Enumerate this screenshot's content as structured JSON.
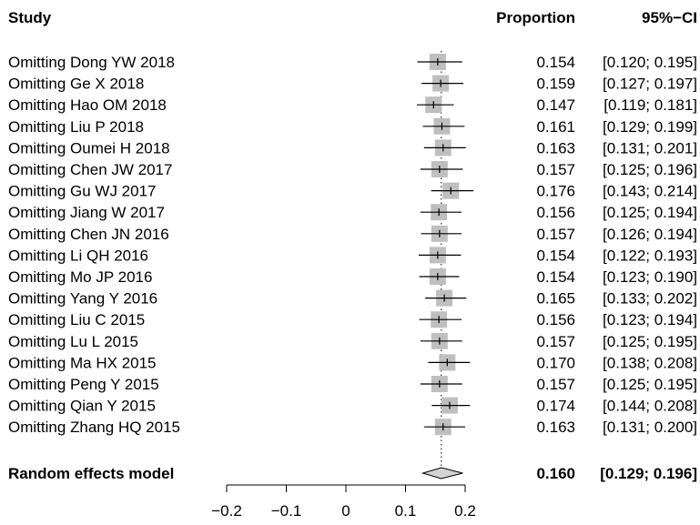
{
  "chart_data": {
    "type": "forest",
    "headers": {
      "study": "Study",
      "proportion": "Proportion",
      "ci": "95%−CI"
    },
    "studies": [
      {
        "label": "Omitting Dong YW 2018",
        "value": 0.154,
        "lower": 0.12,
        "upper": 0.195,
        "value_text": "0.154",
        "ci_text": "[0.120; 0.195]"
      },
      {
        "label": "Omitting Ge X 2018",
        "value": 0.159,
        "lower": 0.127,
        "upper": 0.197,
        "value_text": "0.159",
        "ci_text": "[0.127; 0.197]"
      },
      {
        "label": "Omitting Hao OM 2018",
        "value": 0.147,
        "lower": 0.119,
        "upper": 0.181,
        "value_text": "0.147",
        "ci_text": "[0.119; 0.181]"
      },
      {
        "label": "Omitting Liu P 2018",
        "value": 0.161,
        "lower": 0.129,
        "upper": 0.199,
        "value_text": "0.161",
        "ci_text": "[0.129; 0.199]"
      },
      {
        "label": "Omitting Oumei H 2018",
        "value": 0.163,
        "lower": 0.131,
        "upper": 0.201,
        "value_text": "0.163",
        "ci_text": "[0.131; 0.201]"
      },
      {
        "label": "Omitting Chen JW 2017",
        "value": 0.157,
        "lower": 0.125,
        "upper": 0.196,
        "value_text": "0.157",
        "ci_text": "[0.125; 0.196]"
      },
      {
        "label": "Omitting Gu WJ 2017",
        "value": 0.176,
        "lower": 0.143,
        "upper": 0.214,
        "value_text": "0.176",
        "ci_text": "[0.143; 0.214]"
      },
      {
        "label": "Omitting Jiang W 2017",
        "value": 0.156,
        "lower": 0.125,
        "upper": 0.194,
        "value_text": "0.156",
        "ci_text": "[0.125; 0.194]"
      },
      {
        "label": "Omitting Chen JN 2016",
        "value": 0.157,
        "lower": 0.126,
        "upper": 0.194,
        "value_text": "0.157",
        "ci_text": "[0.126; 0.194]"
      },
      {
        "label": "Omitting Li QH 2016",
        "value": 0.154,
        "lower": 0.122,
        "upper": 0.193,
        "value_text": "0.154",
        "ci_text": "[0.122; 0.193]"
      },
      {
        "label": "Omitting Mo JP 2016",
        "value": 0.154,
        "lower": 0.123,
        "upper": 0.19,
        "value_text": "0.154",
        "ci_text": "[0.123; 0.190]"
      },
      {
        "label": "Omitting Yang Y 2016",
        "value": 0.165,
        "lower": 0.133,
        "upper": 0.202,
        "value_text": "0.165",
        "ci_text": "[0.133; 0.202]"
      },
      {
        "label": "Omitting Liu C 2015",
        "value": 0.156,
        "lower": 0.123,
        "upper": 0.194,
        "value_text": "0.156",
        "ci_text": "[0.123; 0.194]"
      },
      {
        "label": "Omitting Lu L 2015",
        "value": 0.157,
        "lower": 0.125,
        "upper": 0.195,
        "value_text": "0.157",
        "ci_text": "[0.125; 0.195]"
      },
      {
        "label": "Omitting Ma HX 2015",
        "value": 0.17,
        "lower": 0.138,
        "upper": 0.208,
        "value_text": "0.170",
        "ci_text": "[0.138; 0.208]"
      },
      {
        "label": "Omitting Peng Y 2015",
        "value": 0.157,
        "lower": 0.125,
        "upper": 0.195,
        "value_text": "0.157",
        "ci_text": "[0.125; 0.195]"
      },
      {
        "label": "Omitting Qian Y 2015",
        "value": 0.174,
        "lower": 0.144,
        "upper": 0.208,
        "value_text": "0.174",
        "ci_text": "[0.144; 0.208]"
      },
      {
        "label": "Omitting Zhang HQ 2015",
        "value": 0.163,
        "lower": 0.131,
        "upper": 0.2,
        "value_text": "0.163",
        "ci_text": "[0.131; 0.200]"
      }
    ],
    "summary": {
      "label": "Random effects model",
      "value": 0.16,
      "lower": 0.129,
      "upper": 0.196,
      "value_text": "0.160",
      "ci_text": "[0.129; 0.196]"
    },
    "reference_line": 0.16,
    "xlim": [
      -0.2,
      0.2
    ],
    "ticks": [
      {
        "value": -0.2,
        "label": "−0.2"
      },
      {
        "value": -0.1,
        "label": "−0.1"
      },
      {
        "value": 0,
        "label": "0"
      },
      {
        "value": 0.1,
        "label": "0.1"
      },
      {
        "value": 0.2,
        "label": "0.2"
      }
    ],
    "colors": {
      "square": "#bfbfbf",
      "diamond": "#d3d3d3",
      "line": "#000000"
    }
  }
}
